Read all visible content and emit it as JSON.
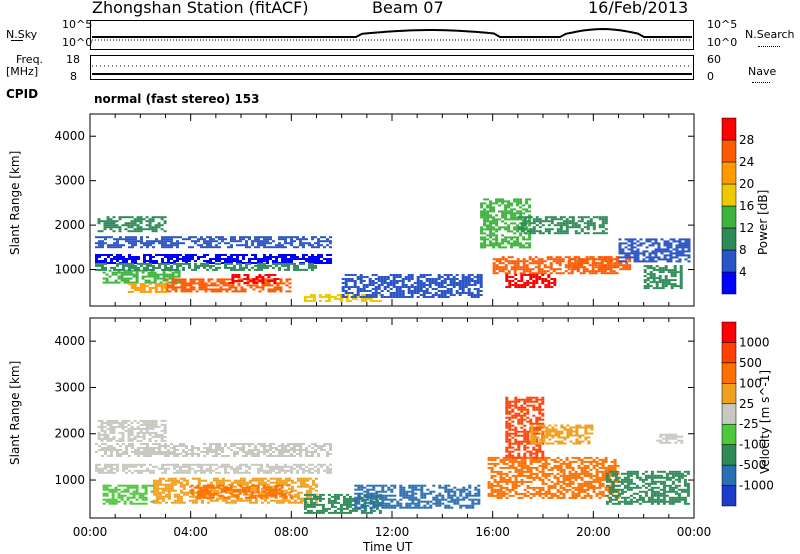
{
  "header": {
    "station": "Zhongshan Station (fitACF)",
    "beam": "Beam 07",
    "date": "16/Feb/2013"
  },
  "summary_panels": {
    "left_labels": {
      "nsky": "N.Sky",
      "freq": "Freq.",
      "freq_unit": "[MHz]",
      "cpid": "CPID"
    },
    "right_labels": {
      "nsearch": "N.Search",
      "nave": "Nave"
    },
    "nsky_ticks": [
      "10^5",
      "10^0"
    ],
    "nsearch_ticks": [
      "10^5",
      "10^0"
    ],
    "freq_ticks": [
      "18",
      "8"
    ],
    "nave_ticks": [
      "60",
      "0"
    ],
    "cpid_text": "normal (fast stereo) 153"
  },
  "chart_data": [
    {
      "type": "heatmap",
      "name": "power",
      "ylabel": "Slant Range [km]",
      "y_ticks": [
        "1000",
        "2000",
        "3000",
        "4000"
      ],
      "ylim": [
        180,
        4500
      ],
      "xlim": [
        0,
        24
      ],
      "colorbar": {
        "label": "Power [dB]",
        "ticks": [
          "4",
          "8",
          "12",
          "16",
          "20",
          "24",
          "28"
        ],
        "colors": [
          "#0000ff",
          "#2a55c8",
          "#2e8b57",
          "#3cb43c",
          "#f0c800",
          "#ff9a00",
          "#ff5a00",
          "#ff0000"
        ]
      },
      "bands": [
        {
          "x0": 0.2,
          "x1": 9.6,
          "y0": 1150,
          "y1": 1350,
          "c": 0
        },
        {
          "x0": 0.2,
          "x1": 9.6,
          "y0": 1500,
          "y1": 1750,
          "c": 1
        },
        {
          "x0": 0.3,
          "x1": 3.0,
          "y0": 1850,
          "y1": 2200,
          "c": 2
        },
        {
          "x0": 0.5,
          "x1": 3.5,
          "y0": 700,
          "y1": 1000,
          "c": 3
        },
        {
          "x0": 3.0,
          "x1": 8.0,
          "y0": 500,
          "y1": 800,
          "c": 6
        },
        {
          "x0": 5.5,
          "x1": 7.5,
          "y0": 700,
          "y1": 900,
          "c": 7
        },
        {
          "x0": 1.5,
          "x1": 3.0,
          "y0": 500,
          "y1": 700,
          "c": 5
        },
        {
          "x0": 0.2,
          "x1": 9.0,
          "y0": 1000,
          "y1": 1150,
          "c": 2
        },
        {
          "x0": 8.5,
          "x1": 11.5,
          "y0": 300,
          "y1": 450,
          "c": 4
        },
        {
          "x0": 16.0,
          "x1": 21.0,
          "y0": 900,
          "y1": 1300,
          "c": 6
        },
        {
          "x0": 16.5,
          "x1": 18.5,
          "y0": 600,
          "y1": 900,
          "c": 7
        },
        {
          "x0": 19.0,
          "x1": 21.5,
          "y0": 1000,
          "y1": 1300,
          "c": 6
        },
        {
          "x0": 15.5,
          "x1": 17.5,
          "y0": 1500,
          "y1": 2600,
          "c": 3
        },
        {
          "x0": 17.0,
          "x1": 20.5,
          "y0": 1800,
          "y1": 2200,
          "c": 2
        },
        {
          "x0": 21.0,
          "x1": 23.8,
          "y0": 1200,
          "y1": 1700,
          "c": 1
        },
        {
          "x0": 10.0,
          "x1": 15.5,
          "y0": 400,
          "y1": 900,
          "c": 1
        },
        {
          "x0": 22.0,
          "x1": 23.5,
          "y0": 600,
          "y1": 1100,
          "c": 2
        }
      ]
    },
    {
      "type": "heatmap",
      "name": "velocity",
      "ylabel": "Slant Range [km]",
      "y_ticks": [
        "1000",
        "2000",
        "3000",
        "4000"
      ],
      "ylim": [
        180,
        4500
      ],
      "xlim": [
        0,
        24
      ],
      "x_ticks": [
        "00:00",
        "04:00",
        "08:00",
        "12:00",
        "16:00",
        "20:00",
        "00:00"
      ],
      "xlabel": "Time UT",
      "colorbar": {
        "label": "Velocity [m s^-1]",
        "ticks": [
          "1000",
          "500",
          "100",
          "25",
          "-25",
          "-100",
          "-500",
          "-1000"
        ],
        "colors": [
          "#1a3cc8",
          "#2a6eb4",
          "#2e8b57",
          "#4cc83c",
          "#c8c8c0",
          "#f0a020",
          "#ff7000",
          "#ff4000",
          "#ff0000"
        ]
      },
      "bands": [
        {
          "x0": 0.2,
          "x1": 9.6,
          "y0": 1150,
          "y1": 1350,
          "c": 4
        },
        {
          "x0": 0.2,
          "x1": 9.6,
          "y0": 1500,
          "y1": 1800,
          "c": 4
        },
        {
          "x0": 0.3,
          "x1": 3.0,
          "y0": 1850,
          "y1": 2300,
          "c": 4
        },
        {
          "x0": 2.5,
          "x1": 9.0,
          "y0": 500,
          "y1": 1050,
          "c": 5
        },
        {
          "x0": 4.0,
          "x1": 8.0,
          "y0": 600,
          "y1": 900,
          "c": 6
        },
        {
          "x0": 0.5,
          "x1": 2.5,
          "y0": 500,
          "y1": 900,
          "c": 3
        },
        {
          "x0": 8.5,
          "x1": 11.5,
          "y0": 300,
          "y1": 700,
          "c": 2
        },
        {
          "x0": 10.5,
          "x1": 15.5,
          "y0": 400,
          "y1": 900,
          "c": 1
        },
        {
          "x0": 15.8,
          "x1": 21.0,
          "y0": 600,
          "y1": 1500,
          "c": 6
        },
        {
          "x0": 16.5,
          "x1": 18.0,
          "y0": 1500,
          "y1": 2800,
          "c": 7
        },
        {
          "x0": 17.5,
          "x1": 20.0,
          "y0": 1800,
          "y1": 2200,
          "c": 5
        },
        {
          "x0": 20.5,
          "x1": 23.8,
          "y0": 500,
          "y1": 1200,
          "c": 2
        },
        {
          "x0": 22.5,
          "x1": 23.5,
          "y0": 1800,
          "y1": 2000,
          "c": 4
        }
      ]
    }
  ]
}
